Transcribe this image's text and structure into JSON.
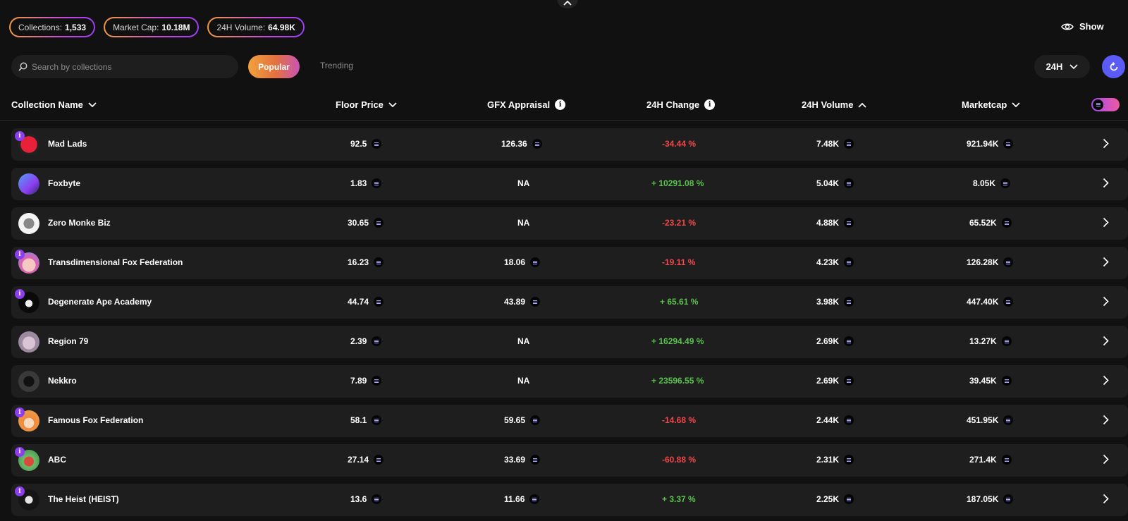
{
  "stats": {
    "collections_label": "Collections:",
    "collections_value": "1,533",
    "market_cap_label": "Market Cap:",
    "market_cap_value": "10.18M",
    "volume_label": "24H Volume:",
    "volume_value": "64.98K"
  },
  "show_label": "Show",
  "search": {
    "placeholder": "Search by collections"
  },
  "tabs": {
    "popular": "Popular",
    "trending": "Trending"
  },
  "period": "24H",
  "columns": {
    "name": "Collection Name",
    "floor": "Floor Price",
    "appraisal": "GFX Appraisal",
    "change": "24H Change",
    "volume": "24H Volume",
    "marketcap": "Marketcap"
  },
  "rows": [
    {
      "name": "Mad Lads",
      "floor": "92.5",
      "appraisal": "126.36",
      "change": "-34.44 %",
      "volume": "7.48K",
      "marketcap": "921.94K"
    },
    {
      "name": "Foxbyte",
      "floor": "1.83",
      "appraisal": "NA",
      "change": "+ 10291.08 %",
      "volume": "5.04K",
      "marketcap": "8.05K"
    },
    {
      "name": "Zero Monke Biz",
      "floor": "30.65",
      "appraisal": "NA",
      "change": "-23.21 %",
      "volume": "4.88K",
      "marketcap": "65.52K"
    },
    {
      "name": "Transdimensional Fox Federation",
      "floor": "16.23",
      "appraisal": "18.06",
      "change": "-19.11 %",
      "volume": "4.23K",
      "marketcap": "126.28K"
    },
    {
      "name": "Degenerate Ape Academy",
      "floor": "44.74",
      "appraisal": "43.89",
      "change": "+ 65.61 %",
      "volume": "3.98K",
      "marketcap": "447.40K"
    },
    {
      "name": "Region 79",
      "floor": "2.39",
      "appraisal": "NA",
      "change": "+ 16294.49 %",
      "volume": "2.69K",
      "marketcap": "13.27K"
    },
    {
      "name": "Nekkro",
      "floor": "7.89",
      "appraisal": "NA",
      "change": "+ 23596.55 %",
      "volume": "2.69K",
      "marketcap": "39.45K"
    },
    {
      "name": "Famous Fox Federation",
      "floor": "58.1",
      "appraisal": "59.65",
      "change": "-14.68 %",
      "volume": "2.44K",
      "marketcap": "451.95K"
    },
    {
      "name": "ABC",
      "floor": "27.14",
      "appraisal": "33.69",
      "change": "-60.88 %",
      "volume": "2.31K",
      "marketcap": "271.4K"
    },
    {
      "name": "The Heist (HEIST)",
      "floor": "13.6",
      "appraisal": "11.66",
      "change": "+ 3.37 %",
      "volume": "2.25K",
      "marketcap": "187.05K"
    }
  ],
  "colors": {
    "negative": "#f0474a",
    "positive": "#58c24a",
    "accent": "#5b5bf5"
  }
}
